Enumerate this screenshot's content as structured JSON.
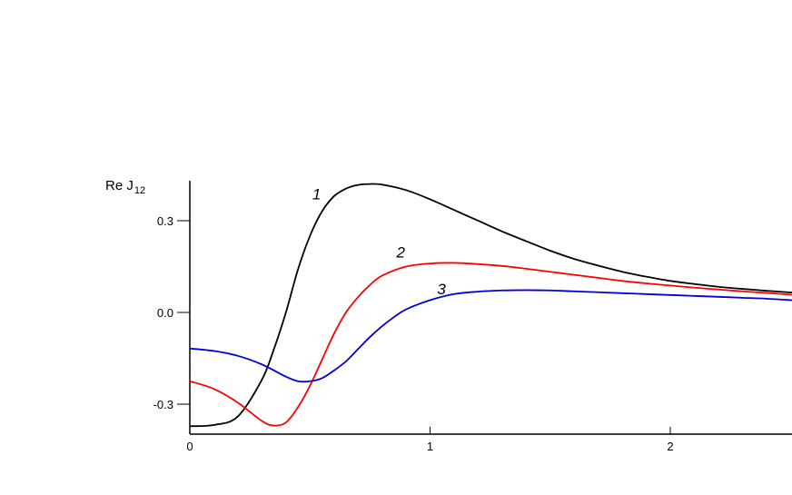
{
  "chart_data": {
    "type": "line",
    "title": "",
    "xlabel": "",
    "ylabel": {
      "main": "Re J",
      "subscript": "12"
    },
    "xlim": [
      0,
      2.52
    ],
    "ylim": [
      -0.4,
      0.44
    ],
    "xticks": [
      {
        "value": 0,
        "label": "0"
      },
      {
        "value": 1,
        "label": "1"
      },
      {
        "value": 2,
        "label": "2"
      }
    ],
    "yticks": [
      {
        "value": 0.3,
        "label": "0.3"
      },
      {
        "value": 0.0,
        "label": "0.0"
      },
      {
        "value": -0.3,
        "label": "-0.3"
      }
    ],
    "grid": false,
    "legend": "none",
    "series": [
      {
        "label": "1",
        "color": "#000000",
        "label_pos": [
          0.51,
          0.37
        ],
        "points": [
          [
            0,
            -0.372
          ],
          [
            0.1,
            -0.368
          ],
          [
            0.2,
            -0.34
          ],
          [
            0.3,
            -0.22
          ],
          [
            0.35,
            -0.12
          ],
          [
            0.4,
            0.0
          ],
          [
            0.45,
            0.14
          ],
          [
            0.5,
            0.25
          ],
          [
            0.55,
            0.33
          ],
          [
            0.6,
            0.38
          ],
          [
            0.65,
            0.405
          ],
          [
            0.7,
            0.417
          ],
          [
            0.75,
            0.42
          ],
          [
            0.8,
            0.418
          ],
          [
            0.9,
            0.4
          ],
          [
            1.0,
            0.37
          ],
          [
            1.1,
            0.335
          ],
          [
            1.2,
            0.3
          ],
          [
            1.3,
            0.265
          ],
          [
            1.4,
            0.233
          ],
          [
            1.5,
            0.202
          ],
          [
            1.6,
            0.175
          ],
          [
            1.7,
            0.153
          ],
          [
            1.8,
            0.133
          ],
          [
            1.9,
            0.117
          ],
          [
            2.0,
            0.103
          ],
          [
            2.1,
            0.093
          ],
          [
            2.2,
            0.084
          ],
          [
            2.3,
            0.077
          ],
          [
            2.4,
            0.071
          ],
          [
            2.52,
            0.065
          ]
        ]
      },
      {
        "label": "2",
        "color": "#ff0000",
        "label_pos": [
          0.86,
          0.18
        ],
        "points": [
          [
            0,
            -0.225
          ],
          [
            0.1,
            -0.25
          ],
          [
            0.2,
            -0.295
          ],
          [
            0.3,
            -0.355
          ],
          [
            0.35,
            -0.37
          ],
          [
            0.4,
            -0.36
          ],
          [
            0.45,
            -0.31
          ],
          [
            0.5,
            -0.24
          ],
          [
            0.55,
            -0.155
          ],
          [
            0.6,
            -0.07
          ],
          [
            0.65,
            0.0
          ],
          [
            0.7,
            0.05
          ],
          [
            0.75,
            0.09
          ],
          [
            0.8,
            0.12
          ],
          [
            0.9,
            0.15
          ],
          [
            1.0,
            0.16
          ],
          [
            1.1,
            0.162
          ],
          [
            1.2,
            0.158
          ],
          [
            1.3,
            0.152
          ],
          [
            1.4,
            0.143
          ],
          [
            1.5,
            0.133
          ],
          [
            1.6,
            0.123
          ],
          [
            1.7,
            0.113
          ],
          [
            1.8,
            0.103
          ],
          [
            1.9,
            0.095
          ],
          [
            2.0,
            0.088
          ],
          [
            2.1,
            0.081
          ],
          [
            2.2,
            0.075
          ],
          [
            2.3,
            0.069
          ],
          [
            2.4,
            0.064
          ],
          [
            2.52,
            0.058
          ]
        ]
      },
      {
        "label": "3",
        "color": "#0000dd",
        "label_pos": [
          1.03,
          0.06
        ],
        "points": [
          [
            0,
            -0.118
          ],
          [
            0.1,
            -0.126
          ],
          [
            0.2,
            -0.142
          ],
          [
            0.3,
            -0.17
          ],
          [
            0.4,
            -0.21
          ],
          [
            0.45,
            -0.225
          ],
          [
            0.5,
            -0.225
          ],
          [
            0.55,
            -0.215
          ],
          [
            0.6,
            -0.19
          ],
          [
            0.65,
            -0.16
          ],
          [
            0.7,
            -0.12
          ],
          [
            0.75,
            -0.08
          ],
          [
            0.8,
            -0.045
          ],
          [
            0.85,
            -0.015
          ],
          [
            0.9,
            0.01
          ],
          [
            1.0,
            0.04
          ],
          [
            1.1,
            0.06
          ],
          [
            1.2,
            0.068
          ],
          [
            1.3,
            0.072
          ],
          [
            1.4,
            0.073
          ],
          [
            1.5,
            0.072
          ],
          [
            1.6,
            0.069
          ],
          [
            1.7,
            0.066
          ],
          [
            1.8,
            0.063
          ],
          [
            1.9,
            0.06
          ],
          [
            2.0,
            0.057
          ],
          [
            2.1,
            0.054
          ],
          [
            2.2,
            0.051
          ],
          [
            2.3,
            0.048
          ],
          [
            2.4,
            0.045
          ],
          [
            2.52,
            0.04
          ]
        ]
      }
    ]
  }
}
